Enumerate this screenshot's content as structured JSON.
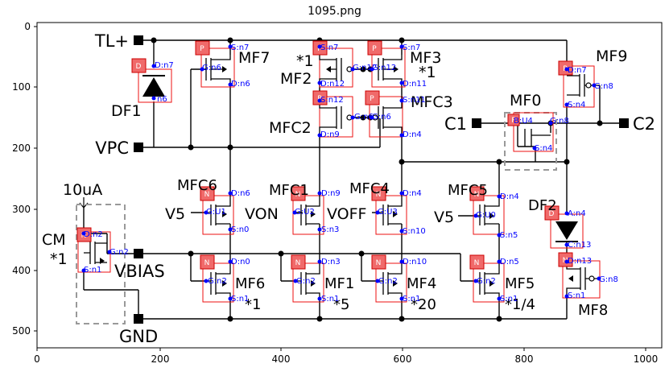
{
  "figure": {
    "title": "1095.png",
    "x_ticks": [
      "0",
      "200",
      "400",
      "600",
      "800",
      "1000"
    ],
    "y_ticks": [
      "0",
      "100",
      "200",
      "300",
      "400",
      "500"
    ]
  },
  "pins": [
    {
      "id": "tl",
      "label": "TL+"
    },
    {
      "id": "vpc",
      "label": "VPC"
    },
    {
      "id": "c1",
      "label": "C1"
    },
    {
      "id": "c2",
      "label": "C2"
    },
    {
      "id": "vbias",
      "label": "VBIAS"
    },
    {
      "id": "gnd",
      "label": "GND"
    }
  ],
  "labels": {
    "mf7": "MF7",
    "mf2": "MF2",
    "mf2_mult": "*1",
    "mf3": "MF3",
    "mf3_mult": "*1",
    "mf9": "MF9",
    "df1": "DF1",
    "mfc2": "MFC2",
    "mfc3": "MFC3",
    "mf0": "MF0",
    "mfc6": "MFC6",
    "mfc1": "MFC1",
    "mfc4": "MFC4",
    "mfc5": "MFC5",
    "df2": "DF2",
    "ten_ua": "10uA",
    "cm": "CM",
    "cm_mult": "*1",
    "v5_a": "V5",
    "von": "VON",
    "voff": "VOFF",
    "v5_b": "V5",
    "mf6": "MF6",
    "mf6_mult": "*1",
    "mf1": "MF1",
    "mf1_mult": "*5",
    "mf4": "MF4",
    "mf4_mult": "*20",
    "mf5": "MF5",
    "mf5_mult": "*1/4",
    "mf8": "MF8"
  },
  "nodes": {
    "d_n7": "D:n7",
    "n6": "n6",
    "mf7_s": "S:n7",
    "mf7_g": "G:n6",
    "mf7_d": "D:n6",
    "mf2_s": "S:n7",
    "mf2_g": "G:n12",
    "mf2_d": "D:n12",
    "mf3_s": "S:n7",
    "mf3_g": "G:n12",
    "mf3_d": "D:n11",
    "mf9_d": "D:n7",
    "mf9_g": "G:n8",
    "mf9_s": "S:n4",
    "mfc2_s": "S:n12",
    "mfc2_g": "G:n6",
    "mfc2_d": "D:n9",
    "mfc3_s": "S:n11",
    "mfc3_g": "G:n6",
    "mfc3_d": "D:n4",
    "mf0_b": "B:U4",
    "mf0_g": "G:n8",
    "mf0_s": "S:n4",
    "mfc6_d": "D:n6",
    "mfc6_g": "G:U1",
    "mfc6_s": "S:n0",
    "mfc1_d": "D:n9",
    "mfc1_g": "G:U2",
    "mfc1_s": "S:n3",
    "mfc4_d": "D:n4",
    "mfc4_g": "G:U3",
    "mfc4_s": "S:n10",
    "mfc5_d": "D:n4",
    "mfc5_g": "G:U0",
    "mfc5_s": "S:n5",
    "df2_a": "A:n4",
    "df2_c": "C:n13",
    "cm_d": "D:n2",
    "cm_g": "G:n2",
    "cm_s": "S:n1",
    "mf6_d": "D:n0",
    "mf6_g": "G:n2",
    "mf6_s": "S:n1",
    "mf1_d": "D:n3",
    "mf1_g": "G:n2",
    "mf1_s": "S:n1",
    "mf4_d": "D:n10",
    "mf4_g": "G:n2",
    "mf4_s": "S:n1",
    "mf5_d": "D:n5",
    "mf5_g": "G:n2",
    "mf5_s": "S:n1",
    "mf8_d": "D:n13",
    "mf8_g": "G:n8",
    "mf8_s": "S:n1"
  },
  "badges": {
    "p": "P",
    "n": "N",
    "d": "D"
  }
}
